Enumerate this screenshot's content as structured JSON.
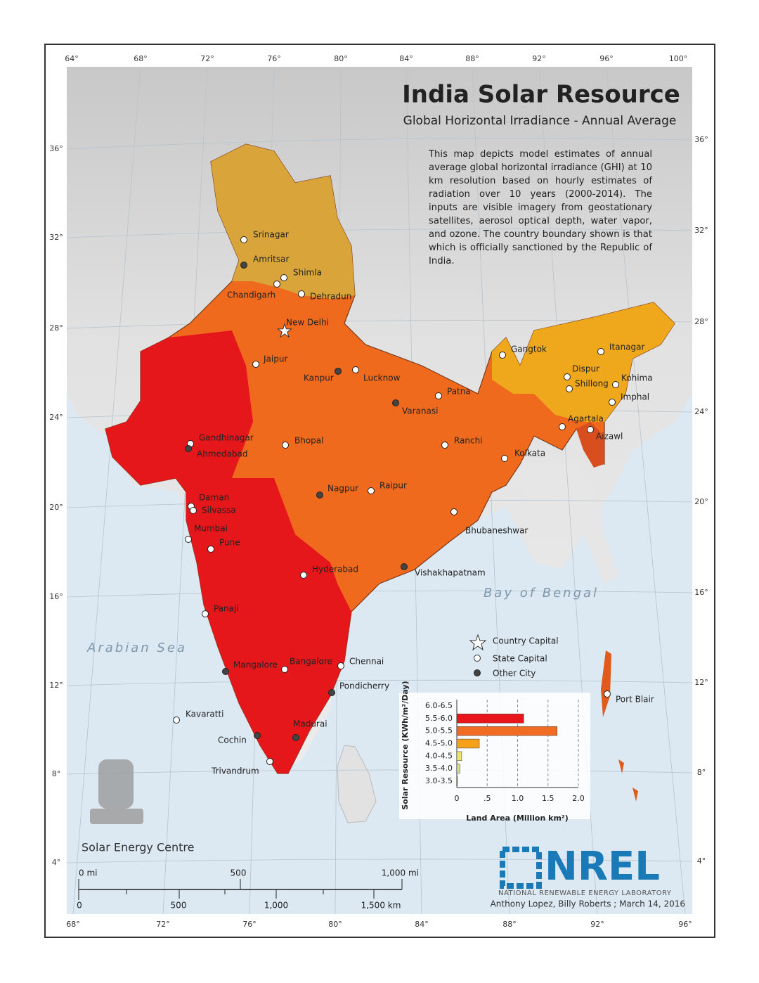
{
  "header": {
    "title": "India Solar Resource",
    "subtitle": "Global Horizontal Irradiance - Annual Average",
    "description": "This map depicts model estimates of annual average global horizontal irradiance (GHI) at 10 km resolution based on hourly estimates of radiation over 10 years (2000-2014).  The inputs are visible imagery from geostationary satellites, aerosol optical depth, water vapor, and ozone. The country boundary shown is that which is officially sanctioned by the Republic of India."
  },
  "graticule": {
    "top": [
      "64°",
      "68°",
      "72°",
      "76°",
      "80°",
      "84°",
      "88°",
      "92°",
      "96°",
      "100°"
    ],
    "bottom": [
      "68°",
      "72°",
      "76°",
      "80°",
      "84°",
      "88°",
      "92°",
      "96°"
    ],
    "left": [
      "36°",
      "32°",
      "28°",
      "24°",
      "20°",
      "16°",
      "12°",
      "8°",
      "4°"
    ],
    "right": [
      "36°",
      "32°",
      "28°",
      "24°",
      "20°",
      "16°",
      "12°",
      "8°",
      "4°"
    ]
  },
  "seas": [
    "Arabian Sea",
    "Bay of Bengal"
  ],
  "cities": [
    "Srinagar",
    "Amritsar",
    "Shimla",
    "Chandigarh",
    "Dehradun",
    "New Delhi",
    "Jaipur",
    "Kanpur",
    "Lucknow",
    "Patna",
    "Varanasi",
    "Gangtok",
    "Itanagar",
    "Dispur",
    "Shillong",
    "Kohima",
    "Imphal",
    "Agartala",
    "Aizawl",
    "Kolkata",
    "Gandhinagar",
    "Ahmedabad",
    "Bhopal",
    "Ranchi",
    "Raipur",
    "Nagpur",
    "Daman",
    "Silvassa",
    "Bhubaneshwar",
    "Mumbai",
    "Pune",
    "Hyderabad",
    "Vishakhapatnam",
    "Panaji",
    "Mangalore",
    "Bangalore",
    "Chennai",
    "Pondicherry",
    "Port Blair",
    "Kavaratti",
    "Madurai",
    "Cochin",
    "Trivandrum"
  ],
  "legend": [
    "Country Capital",
    "State Capital",
    "Other City"
  ],
  "chart": {
    "type": "bar",
    "orientation": "horizontal",
    "y_label": "Solar Resource (KWh/m²/Day)",
    "x_label": "Land Area (Million km²)",
    "categories": [
      "6.0-6.5",
      "5.5-6.0",
      "5.0-5.5",
      "4.5-5.0",
      "4.0-4.5",
      "3.5-4.0",
      "3.0-3.5"
    ],
    "values": [
      0,
      1.1,
      1.65,
      0.37,
      0.08,
      0.05,
      0.01
    ],
    "colors": [
      "#8b0000",
      "#e8161b",
      "#f26b22",
      "#f5a21a",
      "#e9e66a",
      "#d6dc8a",
      "#9aab5a"
    ],
    "xlim": [
      0,
      2
    ],
    "xticks": [
      0,
      {
        "value": 0.5,
        "label": ".5"
      },
      {
        "value": 1,
        "label": "1.0"
      },
      1.5,
      {
        "value": 2,
        "label": "2.0"
      }
    ],
    "grid": true
  },
  "scale": {
    "miles": [
      "0 mi",
      "500",
      "1,000 mi"
    ],
    "km": [
      "0",
      "500",
      "1,000",
      "1,500 km"
    ]
  },
  "credits": {
    "agency": "Solar Energy Centre",
    "logo": "NREL",
    "lab": "NATIONAL RENEWABLE ENERGY LABORATORY",
    "authors": "Anthony Lopez, Billy Roberts ; March 14, 2016"
  }
}
